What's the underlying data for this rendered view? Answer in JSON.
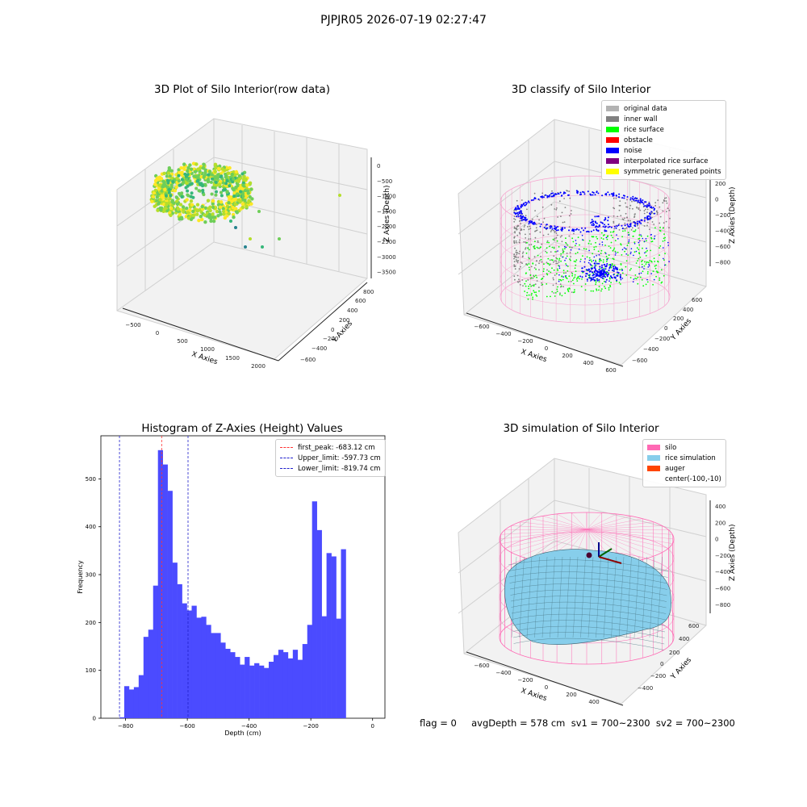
{
  "suptitle": "PJPJR05 2026-07-19 02:27:47",
  "footer": "flag = 0     avgDepth = 578 cm  sv1 = 700~2300  sv2 = 700~2300",
  "chart_data": [
    {
      "type": "scatter",
      "title": "3D Plot of Silo Interior(row data)",
      "xlabel": "X Axies",
      "ylabel": "Y Axies",
      "zlabel": "Z Axies (Depth)",
      "xticks": [
        "−500",
        "0",
        "500",
        "1000",
        "1500",
        "2000"
      ],
      "yticks": [
        "−600",
        "−400",
        "−200",
        "0",
        "200",
        "400",
        "600",
        "800"
      ],
      "zticks": [
        "0",
        "−500",
        "−1000",
        "−1500",
        "−2000",
        "−2500",
        "−3000",
        "−3500"
      ],
      "colormap": [
        "#fde725",
        "#b5de2b",
        "#6ece58",
        "#35b779",
        "#26828e",
        "#31688e"
      ],
      "outliers_xyz": [
        [
          1900,
          600,
          -800
        ],
        [
          600,
          200,
          -1500
        ],
        [
          500,
          0,
          -2200
        ],
        [
          700,
          -300,
          -2500
        ],
        [
          550,
          -400,
          -2800
        ],
        [
          900,
          -200,
          -2400
        ],
        [
          400,
          -100,
          -2000
        ]
      ]
    },
    {
      "type": "scatter",
      "title": "3D classify of Silo Interior",
      "xlabel": "X Axies",
      "ylabel": "Y Axies",
      "zlabel": "Z Axies (Depth)",
      "xticks": [
        "−600",
        "−400",
        "−200",
        "0",
        "200",
        "400",
        "600"
      ],
      "yticks": [
        "−600",
        "−400",
        "−200",
        "0",
        "200",
        "400",
        "600"
      ],
      "zticks": [
        "200",
        "0",
        "−200",
        "−400",
        "−600",
        "−800"
      ],
      "legend": [
        {
          "label": "original data",
          "color": "#b3b3b3"
        },
        {
          "label": "inner wall",
          "color": "#808080"
        },
        {
          "label": "rice surface",
          "color": "#00ff00"
        },
        {
          "label": "obstacle",
          "color": "#ff0000"
        },
        {
          "label": "noise",
          "color": "#0000ff"
        },
        {
          "label": "interpolated rice surface",
          "color": "#800080"
        },
        {
          "label": "symmetric generated points",
          "color": "#ffff00"
        }
      ],
      "wire_color": "#f6a5cf"
    },
    {
      "type": "bar",
      "title": "Histogram of Z-Axies (Height) Values",
      "xlabel": "Depth (cm)",
      "ylabel": "Frequency",
      "xlim": [
        -880,
        40
      ],
      "ylim": [
        0,
        590
      ],
      "xticks": [
        -800,
        -600,
        -400,
        -200,
        0
      ],
      "yticks": [
        0,
        100,
        200,
        300,
        400,
        500
      ],
      "bin_start": -820,
      "bin_width": 15.6,
      "values": [
        2,
        67,
        60,
        65,
        90,
        170,
        185,
        277,
        560,
        530,
        475,
        325,
        280,
        240,
        225,
        235,
        210,
        212,
        195,
        178,
        178,
        158,
        145,
        138,
        128,
        112,
        128,
        110,
        115,
        110,
        105,
        118,
        132,
        143,
        138,
        125,
        143,
        122,
        155,
        195,
        453,
        393,
        213,
        345,
        338,
        208,
        353
      ],
      "bar_color": "#4b4bff",
      "lines": [
        {
          "label": "first_peak: -683.12 cm",
          "x": -683.12,
          "color": "#ff3333"
        },
        {
          "label": "Upper_limit: -597.73 cm",
          "x": -597.73,
          "color": "#2020cc"
        },
        {
          "label": "Lower_limit: -819.74 cm",
          "x": -819.74,
          "color": "#2020cc"
        }
      ]
    },
    {
      "type": "area",
      "title": "3D simulation of Silo Interior",
      "xlabel": "X Axies",
      "ylabel": "Y Axies",
      "zlabel": "Z Axies (Depth)",
      "xticks": [
        "−600",
        "−400",
        "−200",
        "0",
        "200",
        "400"
      ],
      "yticks": [
        "−400",
        "−200",
        "0",
        "200",
        "400",
        "600"
      ],
      "zticks": [
        "400",
        "200",
        "0",
        "−200",
        "−400",
        "−600",
        "−800"
      ],
      "legend": [
        {
          "label": "silo",
          "color": "#ff69b4"
        },
        {
          "label": "rice simulation",
          "color": "#87ceeb"
        },
        {
          "label": "auger",
          "color": "#ff4500"
        },
        {
          "label": "center(-100,-10)",
          "color": ""
        }
      ]
    }
  ]
}
